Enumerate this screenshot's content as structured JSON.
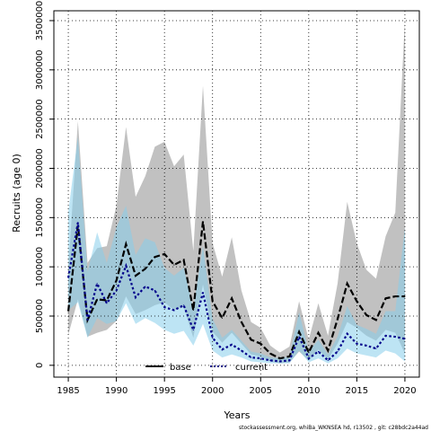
{
  "chart_data": {
    "type": "line",
    "xlabel": "Years",
    "ylabel": "Recruits (age 0)",
    "xlim": [
      1983.5,
      2021.5
    ],
    "ylim": [
      -120000,
      3600000
    ],
    "x_ticks": [
      1985,
      1990,
      1995,
      2000,
      2005,
      2010,
      2015,
      2020
    ],
    "y_ticks": [
      0,
      500000,
      1000000,
      1500000,
      2000000,
      2500000,
      3000000,
      3500000
    ],
    "grid": true,
    "legend_position": "bottom-center",
    "caption": "stockassessment.org, whiBa_WKNSEA hd, r13502 , git: c28bdc2a44ad",
    "colors": {
      "base_band": "#bebebe",
      "current_band": "#87ceeb",
      "base_line": "#000000",
      "current_line": "#00008b"
    },
    "x": [
      1985,
      1986,
      1987,
      1988,
      1989,
      1990,
      1991,
      1992,
      1993,
      1994,
      1995,
      1996,
      1997,
      1998,
      1999,
      2000,
      2001,
      2002,
      2003,
      2004,
      2005,
      2006,
      2007,
      2008,
      2009,
      2010,
      2011,
      2012,
      2013,
      2014,
      2015,
      2016,
      2017,
      2018,
      2019,
      2020
    ],
    "series": [
      {
        "name": "base",
        "style": "solid",
        "values": [
          550000,
          1420000,
          460000,
          670000,
          660000,
          860000,
          1230000,
          910000,
          980000,
          1100000,
          1130000,
          1020000,
          1070000,
          560000,
          1460000,
          650000,
          480000,
          680000,
          440000,
          260000,
          220000,
          120000,
          70000,
          90000,
          340000,
          130000,
          330000,
          150000,
          470000,
          830000,
          650000,
          510000,
          460000,
          680000,
          700000,
          700000
        ],
        "lower": [
          310000,
          670000,
          290000,
          330000,
          360000,
          450000,
          700000,
          520000,
          560000,
          610000,
          640000,
          560000,
          590000,
          280000,
          820000,
          340000,
          230000,
          330000,
          220000,
          110000,
          90000,
          40000,
          20000,
          30000,
          140000,
          50000,
          160000,
          60000,
          220000,
          440000,
          380000,
          300000,
          250000,
          360000,
          330000,
          120000
        ],
        "upper": [
          980000,
          2480000,
          1040000,
          1190000,
          1210000,
          1620000,
          2420000,
          1710000,
          1920000,
          2220000,
          2270000,
          2020000,
          2140000,
          1160000,
          2840000,
          1240000,
          900000,
          1300000,
          760000,
          440000,
          380000,
          200000,
          130000,
          190000,
          650000,
          260000,
          630000,
          300000,
          830000,
          1660000,
          1240000,
          970000,
          880000,
          1310000,
          1550000,
          3500000
        ]
      },
      {
        "name": "current",
        "style": "dotted",
        "values": [
          890000,
          1450000,
          460000,
          830000,
          630000,
          760000,
          1010000,
          690000,
          800000,
          760000,
          590000,
          560000,
          610000,
          360000,
          740000,
          280000,
          160000,
          210000,
          150000,
          80000,
          70000,
          50000,
          40000,
          50000,
          290000,
          70000,
          140000,
          50000,
          140000,
          320000,
          220000,
          200000,
          170000,
          300000,
          290000,
          270000
        ],
        "lower": [
          560000,
          640000,
          280000,
          480000,
          420000,
          450000,
          630000,
          420000,
          480000,
          430000,
          360000,
          320000,
          350000,
          200000,
          420000,
          150000,
          80000,
          110000,
          80000,
          40000,
          30000,
          20000,
          20000,
          20000,
          150000,
          30000,
          70000,
          20000,
          70000,
          170000,
          120000,
          100000,
          80000,
          150000,
          120000,
          40000
        ],
        "upper": [
          1560000,
          2320000,
          950000,
          1350000,
          1040000,
          1400000,
          1620000,
          1120000,
          1290000,
          1250000,
          990000,
          910000,
          990000,
          580000,
          1210000,
          470000,
          280000,
          360000,
          250000,
          140000,
          120000,
          80000,
          70000,
          90000,
          540000,
          140000,
          260000,
          110000,
          290000,
          600000,
          410000,
          370000,
          320000,
          550000,
          550000,
          1400000
        ]
      }
    ]
  }
}
